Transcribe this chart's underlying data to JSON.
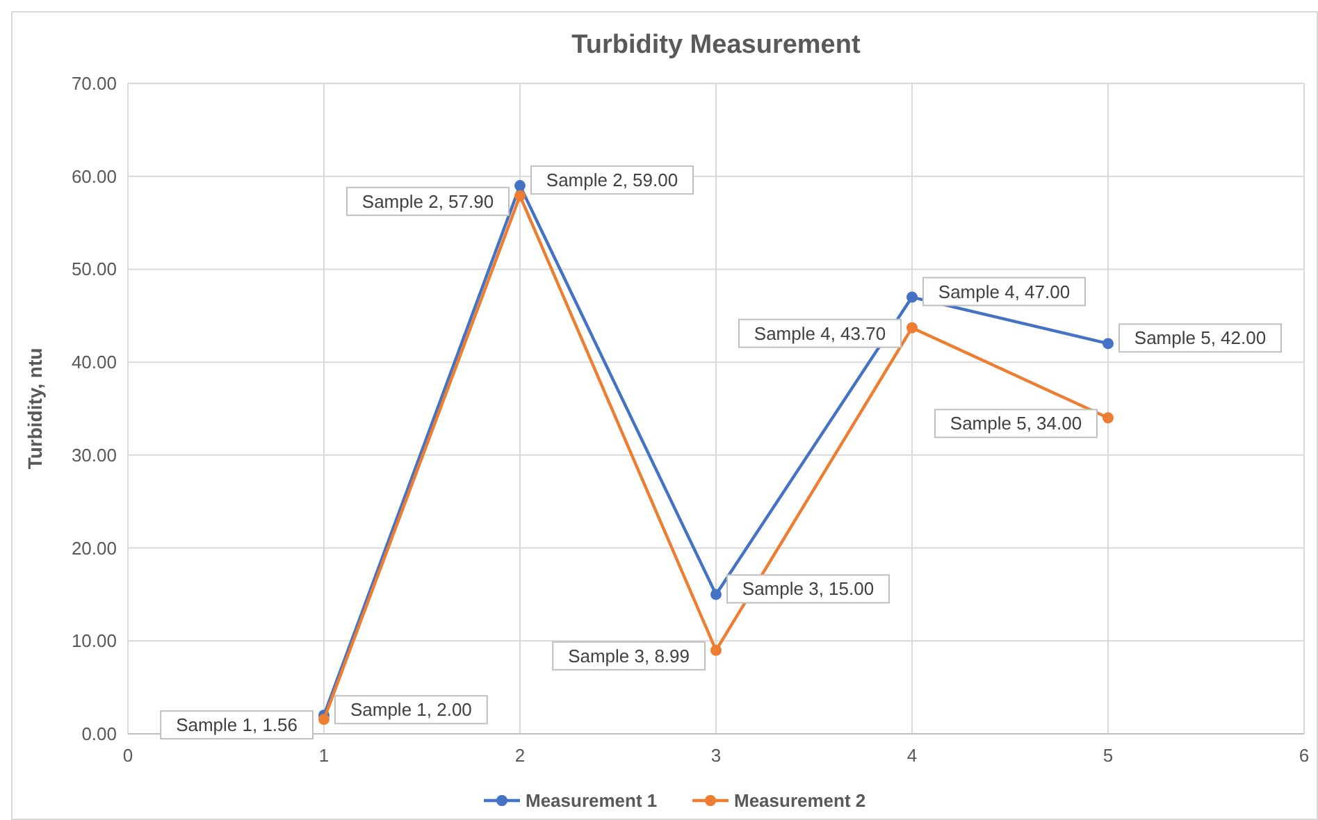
{
  "chart_data": {
    "type": "line",
    "title": "Turbidity Measurement",
    "ylabel": "Turbidity, ntu",
    "x": [
      1,
      2,
      3,
      4,
      5
    ],
    "series": [
      {
        "name": "Measurement 1",
        "color": "#4472c4",
        "values": [
          2.0,
          59.0,
          15.0,
          47.0,
          42.0
        ],
        "value_labels": [
          "Sample 1, 2.00",
          "Sample 2, 59.00",
          "Sample 3, 15.00",
          "Sample 4, 47.00",
          "Sample 5, 42.00"
        ]
      },
      {
        "name": "Measurement 2",
        "color": "#ed7d31",
        "values": [
          1.56,
          57.9,
          8.99,
          43.7,
          34.0
        ],
        "value_labels": [
          "Sample 1, 1.56",
          "Sample 2, 57.90",
          "Sample 3, 8.99",
          "Sample 4, 43.70",
          "Sample 5, 34.00"
        ]
      }
    ],
    "xlim": [
      0,
      6
    ],
    "xticks": [
      0,
      1,
      2,
      3,
      4,
      5,
      6
    ],
    "ylim": [
      0,
      70
    ],
    "yticks": [
      {
        "value": 0,
        "label": "0.00"
      },
      {
        "value": 10,
        "label": "10.00"
      },
      {
        "value": 20,
        "label": "20.00"
      },
      {
        "value": 30,
        "label": "30.00"
      },
      {
        "value": 40,
        "label": "40.00"
      },
      {
        "value": 50,
        "label": "50.00"
      },
      {
        "value": 60,
        "label": "60.00"
      },
      {
        "value": 70,
        "label": "70.00"
      }
    ],
    "grid": true,
    "legend": "bottom",
    "marker": "circle",
    "line_style": "solid"
  }
}
